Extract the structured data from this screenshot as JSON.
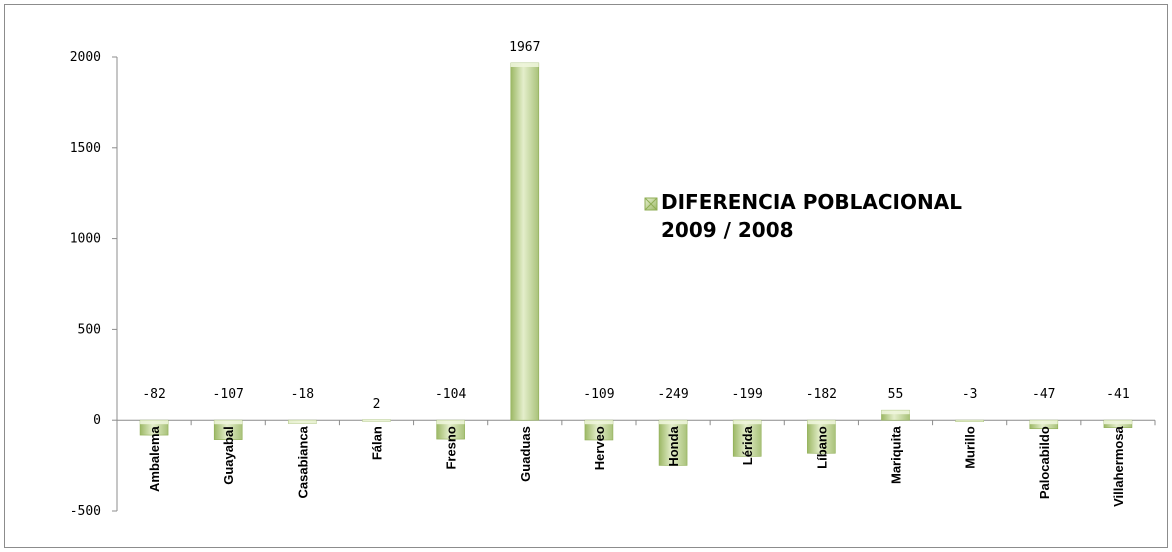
{
  "chart_data": {
    "type": "bar",
    "categories": [
      "Ambalema",
      "Guayabal",
      "Casabianca",
      "Fálan",
      "Fresno",
      "Guaduas",
      "Herveo",
      "Honda",
      "Lérida",
      "Líbano",
      "Mariquita",
      "Murillo",
      "Palocabildo",
      "Villahermosa"
    ],
    "series": [
      {
        "name": "DIFERENCIA POBLACIONAL 2009 / 2008",
        "values": [
          -82,
          -107,
          -18,
          2,
          -104,
          1967,
          -109,
          -249,
          -199,
          -182,
          55,
          -3,
          -47,
          -41
        ]
      }
    ],
    "data_labels": [
      "-82",
      "-107",
      "-18",
      "2",
      "-104",
      "1967",
      "-109",
      "-249",
      "-199",
      "-182",
      "55",
      "-3",
      "-47",
      "-41"
    ],
    "yticks": [
      -500,
      0,
      500,
      1000,
      1500,
      2000
    ],
    "ylim": [
      -500,
      2000
    ],
    "xlabel": "",
    "ylabel": "",
    "title": "",
    "legend": {
      "position": "right",
      "lines": [
        "DIFERENCIA POBLACIONAL",
        "2009 / 2008"
      ]
    },
    "grid": false,
    "colors": {
      "bar_light": "#e8f1d2",
      "bar_mid": "#c6d89a",
      "bar_dark": "#8fae55",
      "axis": "#8c8c8c"
    }
  }
}
